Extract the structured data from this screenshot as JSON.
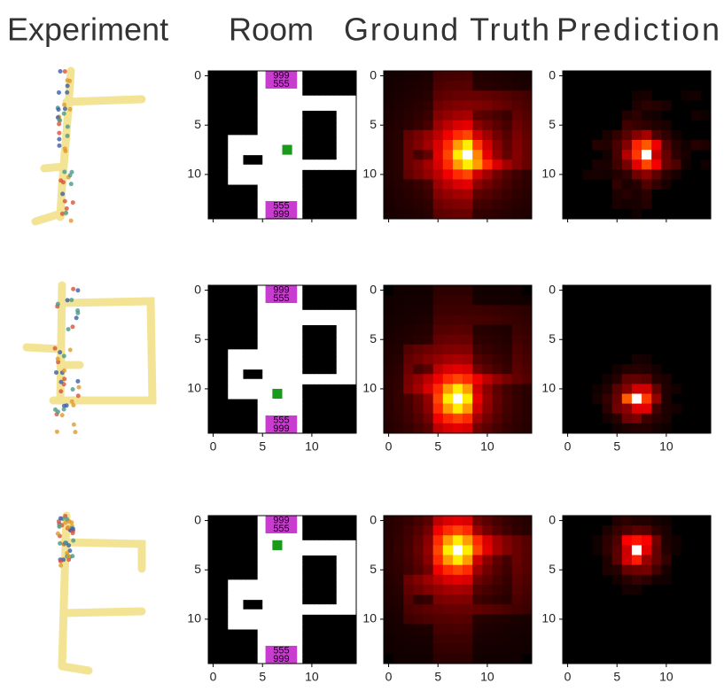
{
  "header": {
    "columns": [
      "Experiment",
      "Room",
      "Ground Truth",
      "Prediction"
    ]
  },
  "axes": {
    "ticks": [
      "0",
      "5",
      "10"
    ]
  },
  "room": {
    "top": [
      "999",
      "555"
    ],
    "bottom": [
      "555",
      "999"
    ]
  }
}
